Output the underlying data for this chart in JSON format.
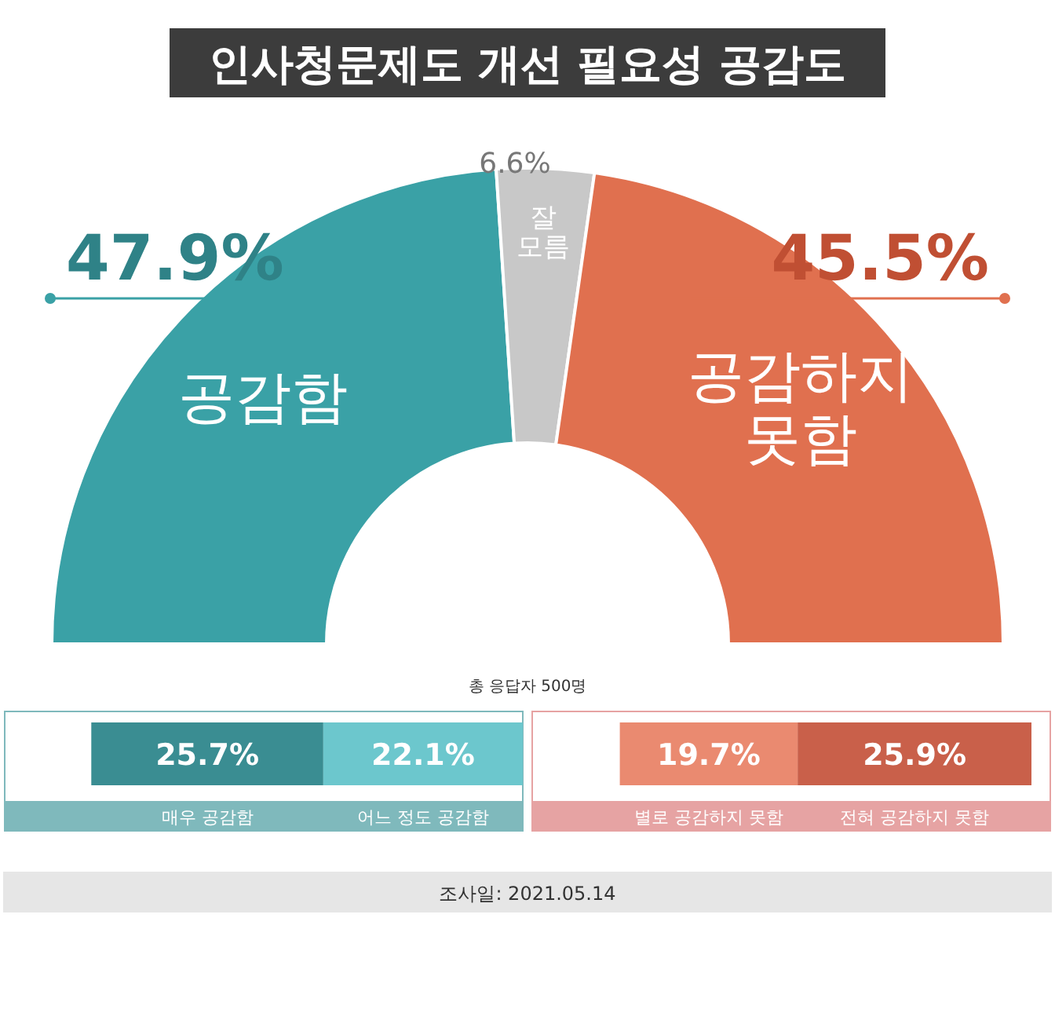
{
  "chart_data": [
    {
      "type": "donut",
      "title": "인사청문제도 개선 필요성 공감도",
      "categories": [
        "공감함",
        "잘 모름",
        "공감하지 못함"
      ],
      "values": [
        47.9,
        6.6,
        45.5
      ],
      "colors": [
        "#3aa1a6",
        "#c8c8c8",
        "#e0704f"
      ],
      "value_labels": [
        "47.9%",
        "6.6%",
        "45.5%"
      ],
      "annotations": [
        "총 응답자 500명",
        "조사일: 2021.05.14"
      ]
    },
    {
      "type": "bar",
      "orientation": "horizontal",
      "stacked": true,
      "categories": [
        null
      ],
      "legend": "bottom",
      "series": [
        {
          "name": "매우 공감함",
          "color": "#3a8d92",
          "values": [
            25.7
          ],
          "value_labels": [
            "25.7%"
          ]
        },
        {
          "name": "어느 정도 공감함",
          "color": "#6cc7cd",
          "values": [
            22.1
          ],
          "value_labels": [
            "22.1%"
          ]
        }
      ]
    },
    {
      "type": "bar",
      "orientation": "horizontal",
      "stacked": true,
      "categories": [
        null
      ],
      "legend": "bottom",
      "series": [
        {
          "name": "별로 공감하지 못함",
          "color": "#ea8a70",
          "values": [
            19.7
          ],
          "value_labels": [
            "19.7%"
          ]
        },
        {
          "name": "전혀 공감하지 못함",
          "color": "#c9604a",
          "values": [
            25.9
          ],
          "value_labels": [
            "25.9%"
          ]
        }
      ]
    }
  ]
}
